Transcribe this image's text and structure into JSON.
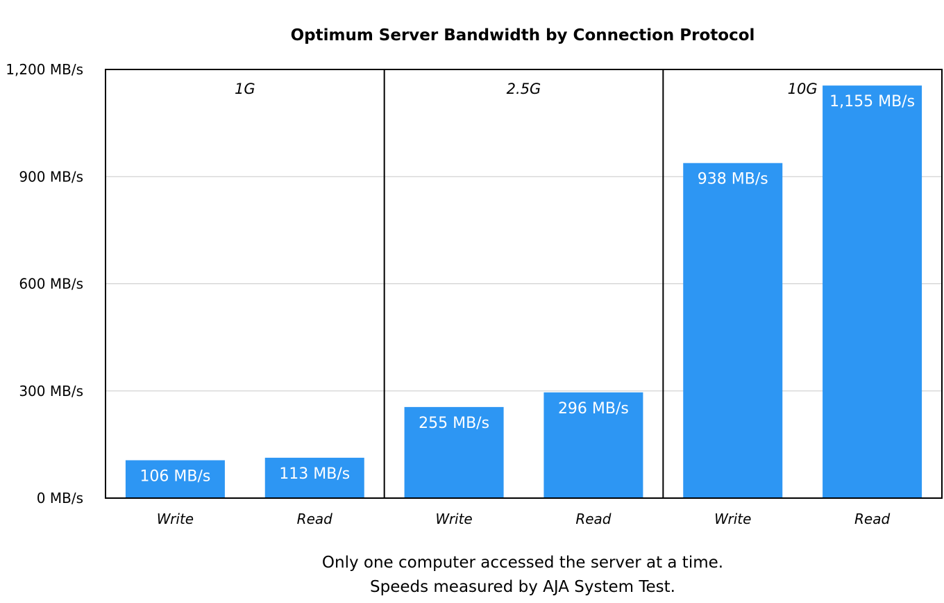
{
  "chart_data": {
    "type": "bar",
    "title": "Optimum Server Bandwidth by Connection Protocol",
    "ylim": [
      0,
      1200
    ],
    "yticks": [
      0,
      300,
      600,
      900,
      1200
    ],
    "ytick_labels": [
      "0 MB/s",
      "300 MB/s",
      "600 MB/s",
      "900 MB/s",
      "1,200 MB/s"
    ],
    "grid": true,
    "colors": {
      "bar": "#2d96f3",
      "grid": "#c8c8c8",
      "frame": "#000000"
    },
    "groups": [
      {
        "name": "1G",
        "categories": [
          "Write",
          "Read"
        ],
        "values": [
          106,
          113
        ],
        "labels": [
          "106 MB/s",
          "113 MB/s"
        ]
      },
      {
        "name": "2.5G",
        "categories": [
          "Write",
          "Read"
        ],
        "values": [
          255,
          296
        ],
        "labels": [
          "255 MB/s",
          "296 MB/s"
        ]
      },
      {
        "name": "10G",
        "categories": [
          "Write",
          "Read"
        ],
        "values": [
          938,
          1155
        ],
        "labels": [
          "938 MB/s",
          "1,155 MB/s"
        ]
      }
    ],
    "footnotes": [
      "Only one computer accessed the server at a time.",
      "Speeds measured by AJA System Test."
    ]
  }
}
